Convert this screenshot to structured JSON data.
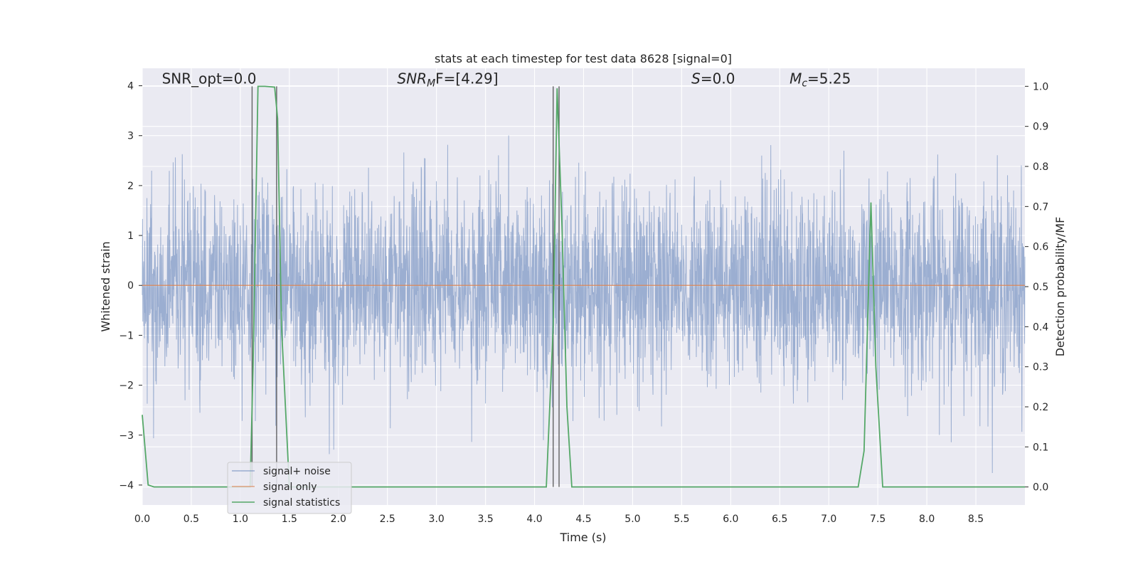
{
  "chart_data": {
    "type": "line",
    "title": "stats at each timestep for test data 8628 [signal=0]",
    "xlabel": "Time (s)",
    "ylabel": "Whitened strain",
    "ylabel_right": "Detection probability/MF",
    "xlim": [
      0.0,
      9.0
    ],
    "ylim": [
      -4.4,
      4.35
    ],
    "ylim_right": [
      -0.045,
      1.045
    ],
    "x_ticks": [
      "0.0",
      "0.5",
      "1.0",
      "1.5",
      "2.0",
      "2.5",
      "3.0",
      "3.5",
      "4.0",
      "4.5",
      "5.0",
      "5.5",
      "6.0",
      "6.5",
      "7.0",
      "7.5",
      "8.0",
      "8.5"
    ],
    "y_ticks": [
      "4",
      "3",
      "2",
      "1",
      "0",
      "−1",
      "−2",
      "−3",
      "−4"
    ],
    "y_ticks_right": [
      "1.0",
      "0.9",
      "0.8",
      "0.7",
      "0.6",
      "0.5",
      "0.4",
      "0.3",
      "0.2",
      "0.1",
      "0.0"
    ],
    "grid": true,
    "legend_position": "lower-left",
    "annotations": [
      {
        "text": "SNR_opt=0.0",
        "x": 0.2,
        "y": 4.1
      },
      {
        "main": "SNR",
        "sub": "M",
        "suffix": "F=[4.29]",
        "x": 2.6,
        "y": 4.1
      },
      {
        "main": "S",
        "sub": "",
        "suffix": "=0.0",
        "x": 5.6,
        "y": 4.1
      },
      {
        "main": "M",
        "sub": "c",
        "suffix": "=5.25",
        "x": 6.6,
        "y": 4.1
      }
    ],
    "vertical_lines_x": [
      1.12,
      1.37,
      4.19,
      4.25
    ],
    "series": [
      {
        "name": "signal+ noise",
        "color": "#4c72b0",
        "axis": "left",
        "typical_envelope": [
          -1.6,
          1.6
        ],
        "peak_range": [
          -4.0,
          3.95
        ]
      },
      {
        "name": "signal only",
        "color": "#dd8452",
        "axis": "left",
        "x": [
          0.0,
          9.0
        ],
        "y": [
          0.0,
          0.0
        ]
      },
      {
        "name": "signal statistics",
        "color": "#55a868",
        "axis": "right",
        "x": [
          0.0,
          0.06,
          0.12,
          1.1,
          1.13,
          1.18,
          1.25,
          1.35,
          1.38,
          1.42,
          1.5,
          4.12,
          4.19,
          4.23,
          4.28,
          4.33,
          4.38,
          7.3,
          7.36,
          7.43,
          7.48,
          7.55,
          7.6,
          9.0
        ],
        "y": [
          0.18,
          0.005,
          0.0,
          0.0,
          0.3,
          1.0,
          1.0,
          0.998,
          0.92,
          0.4,
          0.0,
          0.0,
          0.4,
          0.995,
          0.65,
          0.2,
          0.0,
          0.0,
          0.09,
          0.71,
          0.3,
          0.0,
          0.0,
          0.0
        ]
      }
    ]
  }
}
